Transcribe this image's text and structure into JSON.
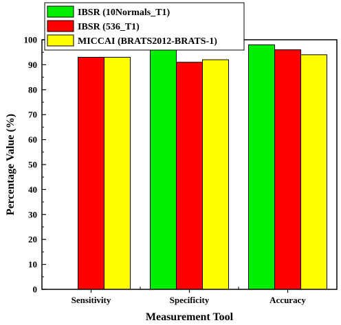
{
  "chart_data": {
    "type": "bar",
    "xlabel": "Measurement Tool",
    "ylabel": "Percentage Value (%)",
    "ylim": [
      0,
      100
    ],
    "yticks": [
      0,
      10,
      20,
      30,
      40,
      50,
      60,
      70,
      80,
      90,
      100
    ],
    "categories": [
      "Sensitivity",
      "Specificity",
      "Accuracy"
    ],
    "series": [
      {
        "name": "IBSR (10Normals_T1)",
        "color": "#00ee00",
        "values": [
          null,
          98,
          98
        ]
      },
      {
        "name": "IBSR (536_T1)",
        "color": "#ff0000",
        "values": [
          93,
          91,
          96
        ]
      },
      {
        "name": "MICCAI (BRATS2012-BRATS-1)",
        "color": "#ffff00",
        "values": [
          93,
          92,
          94
        ]
      }
    ],
    "legend_position": "top-right",
    "grid": false
  }
}
